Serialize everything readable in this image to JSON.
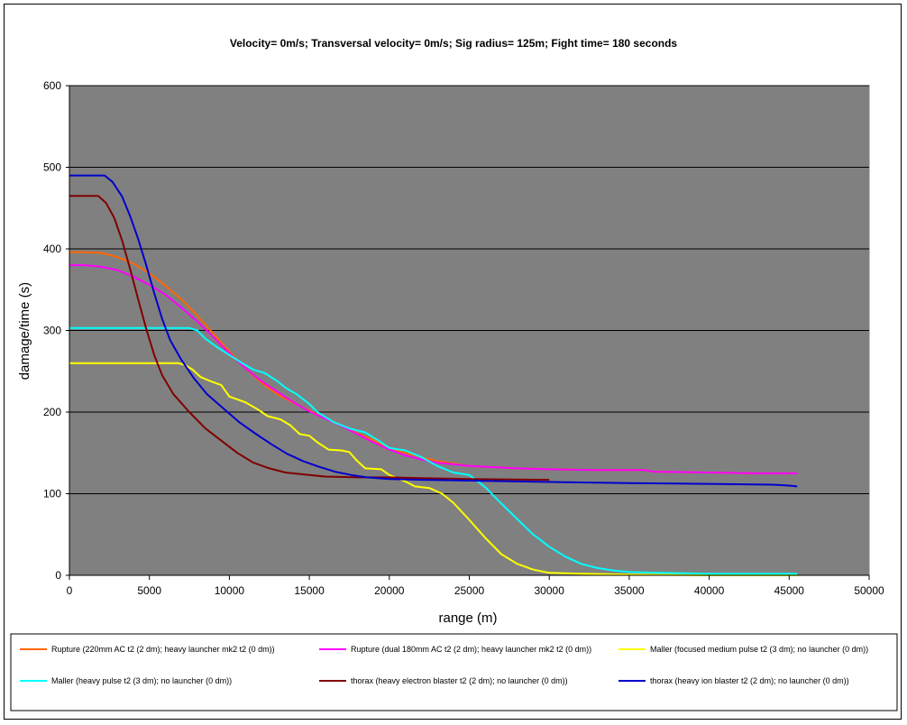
{
  "chart_data": {
    "type": "line",
    "title": "Velocity= 0m/s; Transversal  velocity= 0m/s; Sig radius= 125m; Fight time= 180 seconds",
    "xlabel": "range (m)",
    "ylabel": "damage/time (s)",
    "xlim": [
      0,
      50000
    ],
    "ylim": [
      0,
      600
    ],
    "x_ticks": [
      "0",
      "5000",
      "10000",
      "15000",
      "20000",
      "25000",
      "30000",
      "35000",
      "40000",
      "45000",
      "50000"
    ],
    "y_ticks": [
      "0",
      "100",
      "200",
      "300",
      "400",
      "500",
      "600"
    ],
    "grid": "horizontal",
    "plot_background": "#808080",
    "legend_position": "bottom",
    "series": [
      {
        "name": "Rupture (220mm AC t2 (2 dm); heavy launcher mk2 t2 (0 dm))",
        "color": "#ff6600",
        "points": [
          [
            0,
            396
          ],
          [
            1000,
            396
          ],
          [
            2000,
            395
          ],
          [
            3000,
            390
          ],
          [
            4000,
            382
          ],
          [
            5000,
            370
          ],
          [
            6000,
            355
          ],
          [
            7000,
            338
          ],
          [
            8000,
            318
          ],
          [
            9000,
            296
          ],
          [
            10000,
            274
          ],
          [
            11000,
            254
          ],
          [
            12000,
            236
          ],
          [
            13000,
            222
          ],
          [
            14000,
            211
          ],
          [
            15000,
            202
          ],
          [
            16000,
            193
          ],
          [
            17000,
            184
          ],
          [
            18000,
            174
          ],
          [
            19000,
            166
          ],
          [
            20000,
            156
          ],
          [
            21000,
            150
          ],
          [
            22000,
            145
          ],
          [
            23000,
            140
          ],
          [
            24000,
            137
          ],
          [
            25000,
            134
          ],
          [
            26000,
            133
          ],
          [
            27000,
            132
          ],
          [
            28000,
            131
          ],
          [
            30000,
            130
          ],
          [
            33000,
            129
          ],
          [
            36000,
            129
          ],
          [
            36500,
            127
          ],
          [
            40000,
            126
          ],
          [
            43000,
            125
          ],
          [
            45500,
            125
          ]
        ]
      },
      {
        "name": "Rupture (dual 180mm AC t2 (2 dm); heavy launcher mk2 t2 (0 dm))",
        "color": "#ff00ff",
        "points": [
          [
            0,
            380
          ],
          [
            1000,
            380
          ],
          [
            2000,
            378
          ],
          [
            3000,
            374
          ],
          [
            4000,
            366
          ],
          [
            5000,
            356
          ],
          [
            6000,
            344
          ],
          [
            7000,
            328
          ],
          [
            8000,
            311
          ],
          [
            9000,
            292
          ],
          [
            10000,
            272
          ],
          [
            11000,
            254
          ],
          [
            12000,
            238
          ],
          [
            13000,
            225
          ],
          [
            14000,
            212
          ],
          [
            15000,
            201
          ],
          [
            16000,
            192
          ],
          [
            17000,
            183
          ],
          [
            18000,
            173
          ],
          [
            19000,
            163
          ],
          [
            20000,
            154
          ],
          [
            21000,
            147
          ],
          [
            22000,
            142
          ],
          [
            23000,
            138
          ],
          [
            24000,
            136
          ],
          [
            25000,
            134
          ],
          [
            26000,
            133
          ],
          [
            27000,
            132
          ],
          [
            28000,
            131
          ],
          [
            30000,
            130
          ],
          [
            33000,
            129
          ],
          [
            36000,
            129
          ],
          [
            36500,
            127
          ],
          [
            40000,
            126
          ],
          [
            43000,
            125
          ],
          [
            45500,
            125
          ]
        ]
      },
      {
        "name": "Maller (focused medium pulse t2 (3 dm); no launcher (0 dm))",
        "color": "#ffff00",
        "points": [
          [
            0,
            260
          ],
          [
            6800,
            260
          ],
          [
            7200,
            258
          ],
          [
            7700,
            252
          ],
          [
            8200,
            243
          ],
          [
            8800,
            238
          ],
          [
            9500,
            233
          ],
          [
            10000,
            219
          ],
          [
            11000,
            212
          ],
          [
            11800,
            203
          ],
          [
            12400,
            195
          ],
          [
            13200,
            191
          ],
          [
            13800,
            184
          ],
          [
            14400,
            173
          ],
          [
            15000,
            171
          ],
          [
            15500,
            163
          ],
          [
            16200,
            154
          ],
          [
            17000,
            153
          ],
          [
            17500,
            151
          ],
          [
            18000,
            140
          ],
          [
            18500,
            131
          ],
          [
            19500,
            130
          ],
          [
            20000,
            123
          ],
          [
            21000,
            115
          ],
          [
            21600,
            109
          ],
          [
            22500,
            107
          ],
          [
            23300,
            100
          ],
          [
            24000,
            89
          ],
          [
            25000,
            68
          ],
          [
            26000,
            46
          ],
          [
            27000,
            26
          ],
          [
            28000,
            14
          ],
          [
            29000,
            7
          ],
          [
            30000,
            3
          ],
          [
            32000,
            2
          ],
          [
            35000,
            1
          ],
          [
            40000,
            0
          ],
          [
            45500,
            0
          ]
        ]
      },
      {
        "name": "Maller (heavy pulse t2 (3 dm); no launcher (0 dm))",
        "color": "#00ffff",
        "points": [
          [
            0,
            303
          ],
          [
            7500,
            303
          ],
          [
            8000,
            300
          ],
          [
            8500,
            290
          ],
          [
            9200,
            280
          ],
          [
            10000,
            270
          ],
          [
            10800,
            260
          ],
          [
            11500,
            252
          ],
          [
            12200,
            248
          ],
          [
            13000,
            238
          ],
          [
            13500,
            230
          ],
          [
            14200,
            222
          ],
          [
            15000,
            210
          ],
          [
            15500,
            200
          ],
          [
            16500,
            188
          ],
          [
            17500,
            180
          ],
          [
            18500,
            175
          ],
          [
            19500,
            163
          ],
          [
            20000,
            156
          ],
          [
            21000,
            153
          ],
          [
            22000,
            145
          ],
          [
            23000,
            134
          ],
          [
            24000,
            126
          ],
          [
            25000,
            123
          ],
          [
            26000,
            108
          ],
          [
            27000,
            88
          ],
          [
            28000,
            69
          ],
          [
            29000,
            50
          ],
          [
            30000,
            35
          ],
          [
            31000,
            23
          ],
          [
            32000,
            14
          ],
          [
            33000,
            9
          ],
          [
            34000,
            6
          ],
          [
            35000,
            4
          ],
          [
            37000,
            3
          ],
          [
            40000,
            2
          ],
          [
            45500,
            2
          ]
        ]
      },
      {
        "name": "thorax (heavy electron blaster t2 (2 dm); no launcher (0 dm))",
        "color": "#800000",
        "points": [
          [
            0,
            465
          ],
          [
            1800,
            465
          ],
          [
            2300,
            456
          ],
          [
            2800,
            438
          ],
          [
            3300,
            410
          ],
          [
            3800,
            375
          ],
          [
            4300,
            338
          ],
          [
            4800,
            302
          ],
          [
            5300,
            270
          ],
          [
            5800,
            245
          ],
          [
            6500,
            222
          ],
          [
            7500,
            200
          ],
          [
            8500,
            180
          ],
          [
            9500,
            165
          ],
          [
            10500,
            150
          ],
          [
            11500,
            138
          ],
          [
            12500,
            131
          ],
          [
            13500,
            126
          ],
          [
            15000,
            123
          ],
          [
            16000,
            121
          ],
          [
            18000,
            120
          ],
          [
            20000,
            120
          ],
          [
            22000,
            119
          ],
          [
            25000,
            118
          ],
          [
            30000,
            117
          ]
        ]
      },
      {
        "name": "thorax (heavy ion blaster t2 (2 dm); no launcher (0 dm))",
        "color": "#0000cc",
        "points": [
          [
            0,
            490
          ],
          [
            2200,
            490
          ],
          [
            2700,
            482
          ],
          [
            3300,
            464
          ],
          [
            3800,
            440
          ],
          [
            4300,
            412
          ],
          [
            4800,
            380
          ],
          [
            5300,
            346
          ],
          [
            5800,
            314
          ],
          [
            6300,
            288
          ],
          [
            7000,
            264
          ],
          [
            7800,
            241
          ],
          [
            8600,
            222
          ],
          [
            9600,
            205
          ],
          [
            10600,
            188
          ],
          [
            11600,
            174
          ],
          [
            12600,
            161
          ],
          [
            13600,
            149
          ],
          [
            14600,
            140
          ],
          [
            15600,
            133
          ],
          [
            16600,
            127
          ],
          [
            17600,
            123
          ],
          [
            18600,
            120
          ],
          [
            20000,
            118
          ],
          [
            22000,
            117
          ],
          [
            25000,
            116
          ],
          [
            28000,
            115
          ],
          [
            31000,
            114
          ],
          [
            35000,
            113
          ],
          [
            40000,
            112
          ],
          [
            44000,
            111
          ],
          [
            45000,
            110
          ],
          [
            45500,
            109
          ]
        ]
      }
    ]
  }
}
